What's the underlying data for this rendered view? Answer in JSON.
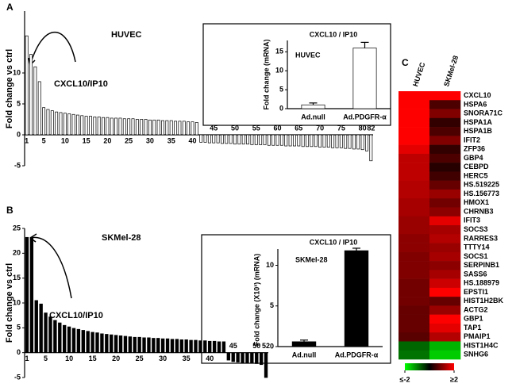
{
  "chart_data": [
    {
      "type": "bar",
      "panel": "A",
      "title": "HUVEC",
      "annotation": "CXCL10/IP10",
      "y_label": "Fold change vs ctrl",
      "color": "#ffffff",
      "edgecolor": "#000000",
      "categories": [
        "1",
        null,
        null,
        null,
        "5",
        null,
        null,
        null,
        null,
        "10",
        null,
        null,
        null,
        null,
        "15",
        null,
        null,
        null,
        null,
        "20",
        null,
        null,
        null,
        null,
        "25",
        null,
        null,
        null,
        null,
        "30",
        null,
        null,
        null,
        null,
        "35",
        null,
        null,
        null,
        null,
        "40",
        null,
        null,
        null,
        null,
        "45",
        null,
        null,
        null,
        null,
        "50",
        null,
        null,
        null,
        null,
        "55",
        null,
        null,
        null,
        null,
        "60",
        null,
        null,
        null,
        null,
        "65",
        null,
        null,
        null,
        null,
        "70",
        null,
        null,
        null,
        null,
        "75",
        null,
        null,
        null,
        null,
        "80",
        null,
        "82"
      ],
      "values": [
        16,
        13,
        11,
        8.6,
        4.4,
        4.1,
        3.9,
        3.7,
        3.6,
        3.5,
        3.4,
        3.3,
        3.2,
        3.1,
        3.0,
        3.0,
        2.9,
        2.9,
        2.8,
        2.8,
        2.7,
        2.7,
        2.7,
        2.6,
        2.6,
        2.6,
        2.5,
        2.5,
        2.5,
        2.4,
        2.4,
        2.4,
        2.3,
        2.3,
        2.3,
        2.2,
        2.2,
        2.2,
        2.1,
        2.1,
        2.0,
        -1.2,
        -1.2,
        -1.3,
        -1.3,
        -1.3,
        -1.4,
        -1.4,
        -1.4,
        -1.5,
        -1.5,
        -1.5,
        -1.5,
        -1.6,
        -1.6,
        -1.6,
        -1.6,
        -1.7,
        -1.7,
        -1.7,
        -1.7,
        -1.8,
        -1.8,
        -1.8,
        -1.8,
        -1.9,
        -1.9,
        -1.9,
        -1.9,
        -2.0,
        -2.0,
        -2.0,
        -2.1,
        -2.1,
        -2.1,
        -2.2,
        -2.2,
        -2.3,
        -2.3,
        -2.4,
        -2.6,
        -4.2
      ],
      "ylim": [
        -5,
        20
      ],
      "yticks": [
        -5,
        0,
        5,
        10
      ],
      "grid": false
    },
    {
      "type": "bar",
      "panel": "B",
      "title": "SKMel-28",
      "annotation": "CXCL10/IP10",
      "y_label": "Fold change vs ctrl",
      "color": "#000000",
      "edgecolor": "#000000",
      "categories": [
        "1",
        null,
        null,
        null,
        "5",
        null,
        null,
        null,
        null,
        "10",
        null,
        null,
        null,
        null,
        "15",
        null,
        null,
        null,
        null,
        "20",
        null,
        null,
        null,
        null,
        "25",
        null,
        null,
        null,
        null,
        "30",
        null,
        null,
        null,
        null,
        "35",
        null,
        null,
        null,
        null,
        "40",
        null,
        null,
        null,
        null,
        "45",
        null,
        null,
        null,
        null,
        "50",
        null,
        "52"
      ],
      "values": [
        23.2,
        23.2,
        10.5,
        9.8,
        8,
        7.2,
        6.5,
        6,
        5.5,
        5.2,
        4.9,
        4.7,
        4.5,
        4.3,
        4.1,
        4.0,
        3.8,
        3.7,
        3.6,
        3.5,
        3.4,
        3.3,
        3.2,
        3.1,
        3.1,
        3.0,
        3.0,
        2.9,
        2.9,
        2.8,
        2.8,
        2.7,
        2.7,
        2.6,
        2.6,
        2.5,
        2.5,
        2.4,
        2.4,
        2.3,
        2.3,
        2.2,
        2.2,
        -1.5,
        -1.8,
        -1.9,
        -2.0,
        -2.0,
        -2.1,
        -2.2,
        -2.4,
        -5.0
      ],
      "ylim": [
        -5,
        25
      ],
      "yticks": [
        -5,
        0,
        5,
        10,
        15,
        20,
        25
      ],
      "grid": false
    },
    {
      "type": "bar",
      "title": "CXCL10 / IP10",
      "subtitle": "HUVEC",
      "y_label": "Fold change (mRNA)",
      "color": "#ffffff",
      "edgecolor": "#000000",
      "categories": [
        "Ad.null",
        "Ad.PDGFR-α"
      ],
      "values": [
        1,
        16
      ],
      "errors": [
        0.5,
        1.5
      ],
      "ylim": [
        0,
        18
      ],
      "yticks": [
        0,
        5,
        10,
        15
      ],
      "grid": false
    },
    {
      "type": "bar",
      "title": "CXCL10 / IP10",
      "subtitle": "SKMel-28",
      "y_label": "Fold change (X10³) (mRNA)",
      "color": "#000000",
      "edgecolor": "#000000",
      "categories": [
        "Ad.null",
        "Ad.PDGFR-α"
      ],
      "values": [
        0.6,
        11.8
      ],
      "errors": [
        0.2,
        0.3
      ],
      "ylim": [
        0,
        12
      ],
      "yticks": [
        0,
        5,
        10
      ],
      "grid": false
    },
    {
      "type": "heatmap",
      "panel": "C",
      "x": [
        "HUVEC",
        "SKMel-28"
      ],
      "y": [
        "CXCL10",
        "HSPA6",
        "SNORA71C",
        "HSPA1A",
        "HSPA1B",
        "IFIT2",
        "ZFP36",
        "GBP4",
        "CEBPD",
        "HERC5",
        "HS.519225",
        "HS.156773",
        "HMOX1",
        "CHRNB3",
        "IFIT3",
        "SOCS3",
        "RARRES3",
        "TTTY14",
        "SOCS1",
        "SERPINB1",
        "SASS6",
        "HS.188979",
        "EPSTI1",
        "HIST1H2BK",
        "ACTG2",
        "GBP1",
        "TAP1",
        "PMAIP1",
        "HIST1H4C",
        "SNHG6"
      ],
      "values": [
        [
          2,
          2
        ],
        [
          2,
          0.6
        ],
        [
          2,
          1.0
        ],
        [
          2,
          0.4
        ],
        [
          2,
          0.6
        ],
        [
          2,
          1.0
        ],
        [
          1.8,
          0.4
        ],
        [
          1.5,
          0.6
        ],
        [
          1.5,
          0.3
        ],
        [
          1.5,
          0.5
        ],
        [
          1.4,
          0.8
        ],
        [
          1.4,
          1.2
        ],
        [
          1.3,
          0.9
        ],
        [
          1.3,
          1.1
        ],
        [
          1.2,
          1.8
        ],
        [
          1.2,
          1.3
        ],
        [
          1.1,
          1.4
        ],
        [
          1.1,
          1.2
        ],
        [
          1.0,
          1.3
        ],
        [
          1.0,
          1.1
        ],
        [
          1.0,
          1.3
        ],
        [
          0.9,
          1.6
        ],
        [
          0.9,
          2
        ],
        [
          0.9,
          0.8
        ],
        [
          0.8,
          1.2
        ],
        [
          0.8,
          2
        ],
        [
          0.8,
          1.8
        ],
        [
          0.7,
          1.4
        ],
        [
          -0.8,
          -1.4
        ],
        [
          -0.9,
          -1.6
        ]
      ],
      "zlim": [
        -2,
        2
      ],
      "colors": [
        "#00ff00",
        "#000000",
        "#ff0000"
      ],
      "colorbar_ticks": [
        {
          "value": -2,
          "label": "≤-2"
        },
        {
          "value": 2,
          "label": "≥2"
        }
      ]
    }
  ]
}
